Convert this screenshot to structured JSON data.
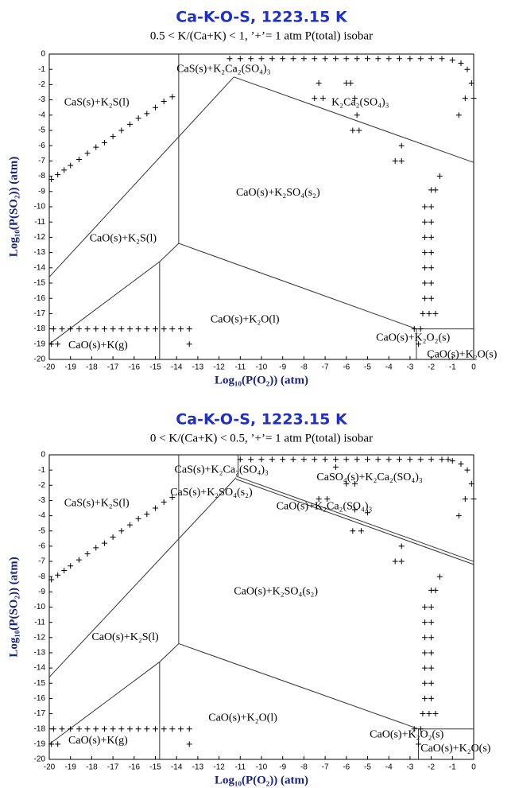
{
  "chart_data": [
    {
      "type": "scatter",
      "title": "Ca-K-O-S, 1223.15 K",
      "subtitle": "0.5 < K/(Ca+K) < 1, ’+’= 1 atm P(total) isobar",
      "xlabel": "Log₁₀(P(O₂)) (atm)",
      "ylabel": "Log₁₀(P(SO₂)) (atm)",
      "xlim": [
        -20,
        0
      ],
      "ylim": [
        -20,
        0
      ],
      "xticks": [
        -20,
        -19,
        -18,
        -17,
        -16,
        -15,
        -14,
        -13,
        -12,
        -11,
        -10,
        -9,
        -8,
        -7,
        -6,
        -5,
        -4,
        -3,
        -2,
        -1,
        0
      ],
      "yticks": [
        0,
        -1,
        -2,
        -3,
        -4,
        -5,
        -6,
        -7,
        -8,
        -9,
        -10,
        -11,
        -12,
        -13,
        -14,
        -15,
        -16,
        -17,
        -18,
        -19,
        -20
      ],
      "annotations": [
        "CaS(s)+K₂S(l)",
        "CaS(s)+K₂Ca₂(SO₄)₃",
        "K₂Ca₂(SO₄)₃",
        "CaO(s)+K₂SO₄(s₂)",
        "CaO(s)+K₂S(l)",
        "CaO(s)+K₂O(l)",
        "CaO(s)+K(g)",
        "CaO(s)+K₂O₂(s)",
        "CaO(s)+K₂O(s)"
      ],
      "boundaries": [
        {
          "x": [
            -20,
            -11.3
          ],
          "y": [
            -14.6,
            -1.5
          ]
        },
        {
          "x": [
            -11.3,
            0
          ],
          "y": [
            -1.5,
            -7.1
          ]
        },
        {
          "x": [
            -13.9,
            -13.9
          ],
          "y": [
            0,
            -12.4
          ]
        },
        {
          "x": [
            -20,
            -14.8,
            -13.9
          ],
          "y": [
            -19,
            -13.6,
            -12.4
          ]
        },
        {
          "x": [
            -13.9,
            -2.7
          ],
          "y": [
            -12.4,
            -18
          ]
        },
        {
          "x": [
            -14.8,
            -14.8
          ],
          "y": [
            -13.6,
            -20
          ]
        },
        {
          "x": [
            -2.7,
            -2.7
          ],
          "y": [
            -18,
            -20
          ]
        },
        {
          "x": [
            -2.7,
            0
          ],
          "y": [
            -18,
            -18
          ]
        }
      ],
      "isobar": {
        "color": "#000",
        "x": [
          -19.9,
          -19.6,
          -19.3,
          -19,
          -18.6,
          -18.2,
          -17.8,
          -17.4,
          -17,
          -16.6,
          -16.2,
          -15.8,
          -15.4,
          -15,
          -14.6,
          -14.2,
          -11.5,
          -11,
          -10.5,
          -10,
          -9.5,
          -9,
          -8.5,
          -8,
          -7.5,
          -7,
          -6.5,
          -6,
          -5.5,
          -5,
          -4.5,
          -4,
          -3.5,
          -3,
          -2.5,
          -2,
          -1.5,
          -1,
          -0.6,
          -0.3,
          -0.1,
          0,
          -0.4,
          -0.7,
          -7.3,
          -7.5,
          -7.1,
          -6,
          -5.8,
          -5.6,
          -5.5,
          -5.7,
          -5.4,
          -3.4,
          -3.7,
          -3.4,
          -1.6,
          -2,
          -1.8,
          -2.3,
          -2,
          -2.3,
          -2,
          -2.3,
          -2,
          -2.3,
          -2,
          -2.3,
          -2,
          -2.3,
          -2,
          -2.3,
          -2,
          -2.4,
          -2.1,
          -1.8,
          -2.8,
          -2.5,
          -2.6,
          -19.8,
          -19.4,
          -19,
          -18.6,
          -18.2,
          -17.8,
          -17.4,
          -17,
          -16.6,
          -16.2,
          -15.8,
          -15.4,
          -15,
          -14.6,
          -14.2,
          -13.8,
          -13.4,
          -19.9,
          -19.6,
          -13.4
        ],
        "y": [
          -8.2,
          -7.9,
          -7.6,
          -7.3,
          -6.9,
          -6.5,
          -6.1,
          -5.8,
          -5.4,
          -5,
          -4.6,
          -4.2,
          -3.9,
          -3.5,
          -3.1,
          -2.8,
          -0.3,
          -0.3,
          -0.3,
          -0.3,
          -0.3,
          -0.3,
          -0.3,
          -0.3,
          -0.3,
          -0.3,
          -0.3,
          -0.3,
          -0.3,
          -0.3,
          -0.3,
          -0.3,
          -0.3,
          -0.3,
          -0.3,
          -0.3,
          -0.3,
          -0.4,
          -0.6,
          -1,
          -1.9,
          -2.9,
          -2.9,
          -4,
          -1.9,
          -2.9,
          -2.9,
          -1.9,
          -1.9,
          -2.9,
          -4,
          -5,
          -5,
          -6,
          -7,
          -7,
          -8,
          -8.9,
          -8.9,
          -10,
          -10,
          -11,
          -11,
          -12,
          -12,
          -13,
          -13,
          -14,
          -14,
          -15,
          -15,
          -16,
          -16,
          -17,
          -17,
          -17,
          -18,
          -18,
          -19,
          -18,
          -18,
          -18,
          -18,
          -18,
          -18,
          -18,
          -18,
          -18,
          -18,
          -18,
          -18,
          -18,
          -18,
          -18,
          -18,
          -18,
          -19,
          -19,
          -19
        ]
      }
    },
    {
      "type": "scatter",
      "title": "Ca-K-O-S, 1223.15 K",
      "subtitle": "0 < K/(Ca+K) < 0.5, ’+’= 1 atm P(total) isobar",
      "xlabel": "Log₁₀(P(O₂)) (atm)",
      "ylabel": "Log₁₀(P(SO₂)) (atm)",
      "xlim": [
        -20,
        0
      ],
      "ylim": [
        -20,
        0
      ],
      "xticks": [
        -20,
        -19,
        -18,
        -17,
        -16,
        -15,
        -14,
        -13,
        -12,
        -11,
        -10,
        -9,
        -8,
        -7,
        -6,
        -5,
        -4,
        -3,
        -2,
        -1,
        0
      ],
      "yticks": [
        0,
        -1,
        -2,
        -3,
        -4,
        -5,
        -6,
        -7,
        -8,
        -9,
        -10,
        -11,
        -12,
        -13,
        -14,
        -15,
        -16,
        -17,
        -18,
        -19,
        -20
      ],
      "annotations": [
        "CaS(s)+K₂Ca₂(SO₄)₃",
        "CaS(s)+K₂SO₄(s₂)",
        "CaSO₄(s)+K₂Ca₂(SO₄)₃",
        "CaO(s)+K₂Ca₂(SO₄)₃",
        "CaS(s)+K₂S(l)",
        "CaO(s)+K₂SO₄(s₂)",
        "CaO(s)+K₂S(l)",
        "CaO(s)+K₂O(l)",
        "CaO(s)+K(g)",
        "CaO(s)+K₂O₂(s)",
        "CaO(s)+K₂O(s)"
      ],
      "boundaries": [
        {
          "x": [
            -20,
            -11.2
          ],
          "y": [
            -14.6,
            -1.5
          ]
        },
        {
          "x": [
            -11.2,
            0
          ],
          "y": [
            -1.4,
            -7.0
          ]
        },
        {
          "x": [
            -11.2,
            0
          ],
          "y": [
            -1.6,
            -7.2
          ]
        },
        {
          "x": [
            -11.1,
            -11.1
          ],
          "y": [
            0,
            -1.4
          ]
        },
        {
          "x": [
            -13.9,
            -13.9
          ],
          "y": [
            0,
            -12.4
          ]
        },
        {
          "x": [
            -20,
            -14.8,
            -13.9
          ],
          "y": [
            -19,
            -13.6,
            -12.4
          ]
        },
        {
          "x": [
            -13.9,
            -2.6
          ],
          "y": [
            -12.4,
            -18
          ]
        },
        {
          "x": [
            -14.8,
            -14.8
          ],
          "y": [
            -13.6,
            -20
          ]
        },
        {
          "x": [
            -2.6,
            -2.6
          ],
          "y": [
            -18,
            -20
          ]
        },
        {
          "x": [
            -2.6,
            0
          ],
          "y": [
            -18,
            -18
          ]
        }
      ],
      "isobar": {
        "color": "#000",
        "x": [
          -19.9,
          -19.6,
          -19.3,
          -19,
          -18.6,
          -18.2,
          -17.8,
          -17.4,
          -17,
          -16.6,
          -16.2,
          -15.8,
          -15.4,
          -15,
          -14.6,
          -14.2,
          -11,
          -10.5,
          -10,
          -9.5,
          -9,
          -8.5,
          -8,
          -7.5,
          -7,
          -6.5,
          -6,
          -5.5,
          -5,
          -4.5,
          -4,
          -3.5,
          -3,
          -2.5,
          -2,
          -1.5,
          -1.2,
          -1,
          -0.6,
          -0.3,
          -0.1,
          0,
          -0.4,
          -0.7,
          -6.5,
          -6,
          -5.6,
          -7.3,
          -6.9,
          -5.6,
          -5,
          -5.7,
          -5.3,
          -3.4,
          -3.7,
          -3.4,
          -1.6,
          -2,
          -1.8,
          -2.3,
          -2,
          -2.3,
          -2,
          -2.3,
          -2,
          -2.3,
          -2,
          -2.3,
          -2,
          -2.3,
          -2,
          -2.3,
          -2,
          -2.4,
          -2.1,
          -1.8,
          -2.8,
          -2.5,
          -2.6,
          -19.8,
          -19.4,
          -19,
          -18.6,
          -18.2,
          -17.8,
          -17.4,
          -17,
          -16.6,
          -16.2,
          -15.8,
          -15.4,
          -15,
          -14.6,
          -14.2,
          -13.8,
          -13.4,
          -19.9,
          -19.6,
          -13.4
        ],
        "y": [
          -8.2,
          -7.9,
          -7.6,
          -7.3,
          -6.9,
          -6.5,
          -6.1,
          -5.8,
          -5.4,
          -5,
          -4.6,
          -4.2,
          -3.9,
          -3.5,
          -3.1,
          -2.8,
          -0.3,
          -0.3,
          -0.3,
          -0.3,
          -0.3,
          -0.3,
          -0.3,
          -0.3,
          -0.3,
          -0.3,
          -0.3,
          -0.3,
          -0.3,
          -0.3,
          -0.3,
          -0.3,
          -0.3,
          -0.3,
          -0.3,
          -0.3,
          -0.3,
          -0.4,
          -0.6,
          -1,
          -1.9,
          -2.9,
          -2.9,
          -4,
          -0.8,
          -1.9,
          -1.9,
          -2.9,
          -2.9,
          -3.6,
          -3.8,
          -5,
          -5,
          -6,
          -7,
          -7,
          -8,
          -8.9,
          -8.9,
          -10,
          -10,
          -11,
          -11,
          -12,
          -12,
          -13,
          -13,
          -14,
          -14,
          -15,
          -15,
          -16,
          -16,
          -17,
          -17,
          -17,
          -18,
          -18,
          -19,
          -18,
          -18,
          -18,
          -18,
          -18,
          -18,
          -18,
          -18,
          -18,
          -18,
          -18,
          -18,
          -18,
          -18,
          -18,
          -18,
          -18,
          -19,
          -19,
          -19
        ]
      }
    }
  ]
}
